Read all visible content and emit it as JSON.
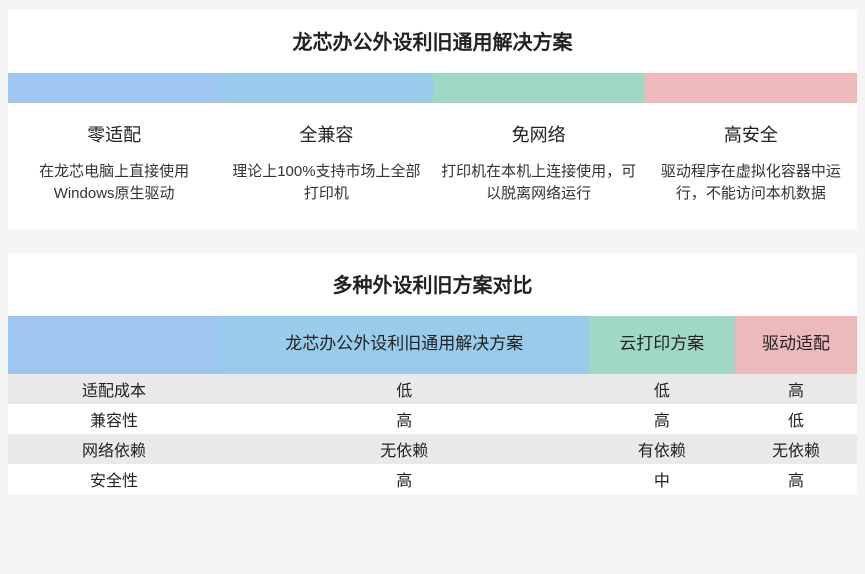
{
  "colors": {
    "page_bg": "#f5f5f5",
    "block_bg": "#ffffff",
    "row_alt_bg": "#e9e9e9",
    "text": "#222222"
  },
  "palette": [
    "#9fc5f1",
    "#99cbea",
    "#9fd9c5",
    "#eeb9bb"
  ],
  "table1": {
    "title": "龙芯办公外设利旧通用解决方案",
    "columns": [
      {
        "head": "零适配",
        "desc": "在龙芯电脑上直接使用Windows原生驱动"
      },
      {
        "head": "全兼容",
        "desc": "理论上100%支持市场上全部打印机"
      },
      {
        "head": "免网络",
        "desc": "打印机在本机上连接使用，可以脱离网络运行"
      },
      {
        "head": "高安全",
        "desc": "驱动程序在虚拟化容器中运行，不能访问本机数据"
      }
    ]
  },
  "table2": {
    "title": "多种外设利旧方案对比",
    "header_blank_color": "#9fc5f1",
    "columns": [
      {
        "label": "龙芯办公外设利旧通用解决方案",
        "color": "#99cbea"
      },
      {
        "label": "云打印方案",
        "color": "#9fd9c5"
      },
      {
        "label": "驱动适配",
        "color": "#eeb9bb"
      }
    ],
    "rows": [
      {
        "label": "适配成本",
        "cells": [
          "低",
          "低",
          "高"
        ]
      },
      {
        "label": "兼容性",
        "cells": [
          "高",
          "高",
          "低"
        ]
      },
      {
        "label": "网络依赖",
        "cells": [
          "无依赖",
          "有依赖",
          "无依赖"
        ]
      },
      {
        "label": "安全性",
        "cells": [
          "高",
          "中",
          "高"
        ]
      }
    ]
  }
}
